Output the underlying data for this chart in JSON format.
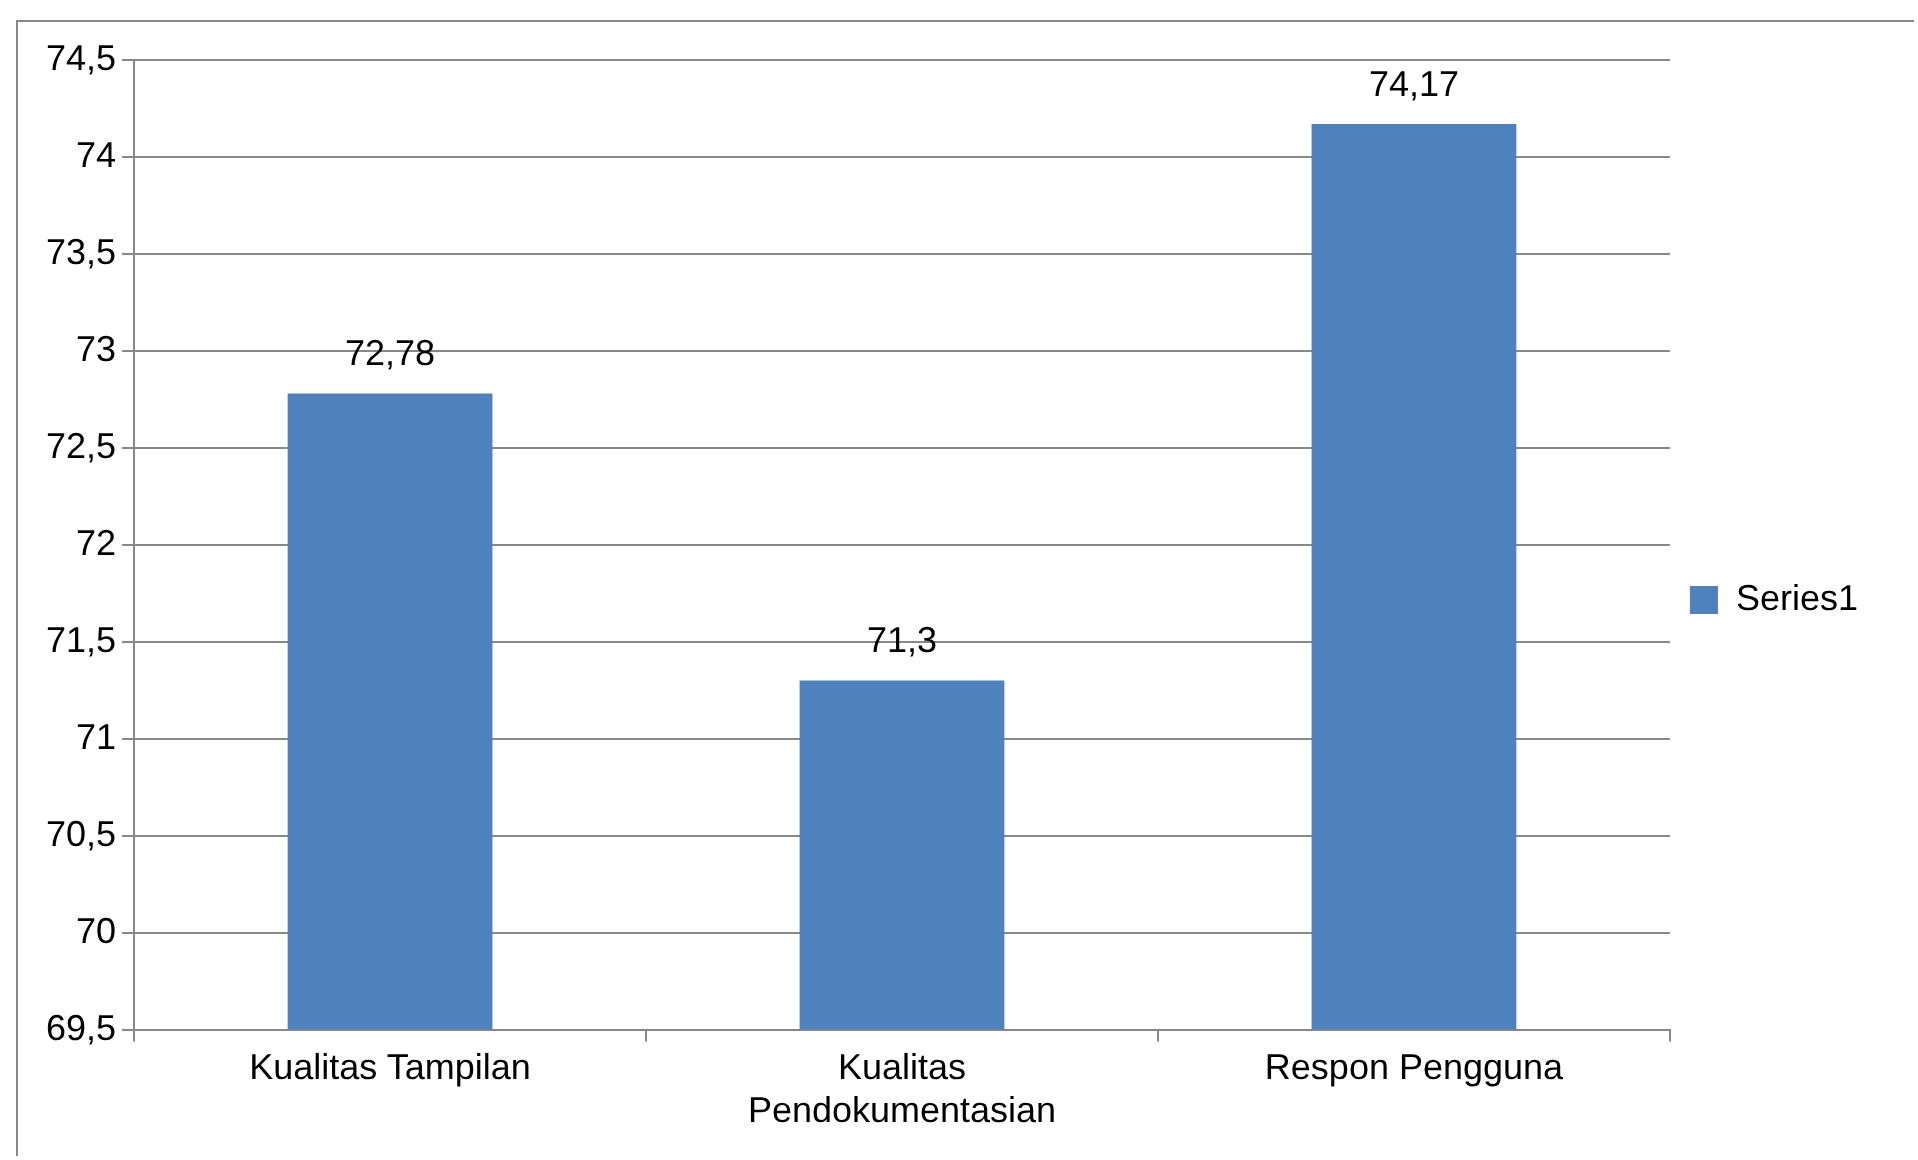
{
  "chart_data": {
    "type": "bar",
    "categories": [
      "Kualitas Tampilan",
      "Kualitas Pendokumentasian",
      "Respon Pengguna"
    ],
    "series": [
      {
        "name": "Series1",
        "color": "#4f81bd",
        "values": [
          72.78,
          71.3,
          74.17
        ],
        "value_labels": [
          "72,78",
          "71,3",
          "74,17"
        ]
      }
    ],
    "ylim": [
      69.5,
      74.5
    ],
    "yticks": [
      {
        "value": 69.5,
        "label": "69,5"
      },
      70,
      {
        "value": 70.5,
        "label": "70,5"
      },
      71,
      {
        "value": 71.5,
        "label": "71,5"
      },
      72,
      {
        "value": 72.5,
        "label": "72,5"
      },
      73,
      {
        "value": 73.5,
        "label": "73,5"
      },
      74,
      {
        "value": 74.5,
        "label": "74,5"
      }
    ],
    "grid": "y",
    "legend": "right"
  }
}
